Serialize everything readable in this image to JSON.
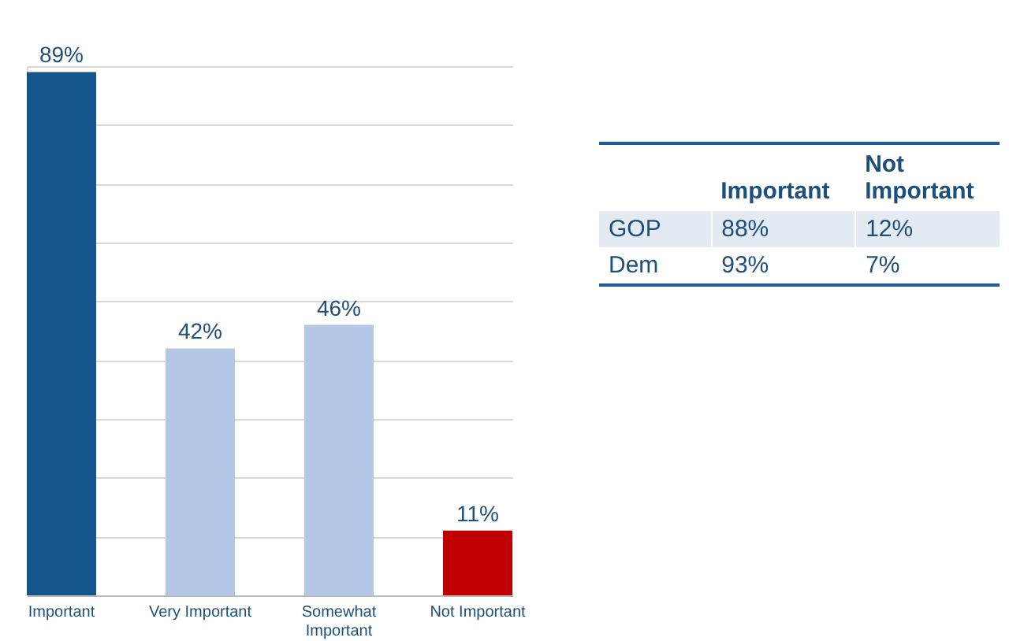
{
  "chart_data": [
    {
      "type": "bar",
      "categories": [
        "Important",
        "Very Important",
        "Somewhat Important",
        "Not Important"
      ],
      "values": [
        89,
        42,
        46,
        11
      ],
      "colors": [
        "#14568b",
        "#b4c7e7",
        "#b4c7e7",
        "#c00000"
      ],
      "value_labels": [
        "89%",
        "42%",
        "46%",
        "11%"
      ],
      "grid": "y",
      "tick_labels": "x"
    },
    {
      "type": "other",
      "categories": [
        "Important",
        "Not Important"
      ],
      "series": [
        {
          "name": "GOP",
          "values": [
            88,
            12
          ],
          "value_labels": [
            "88%",
            "12%"
          ]
        },
        {
          "name": "Dem",
          "values": [
            93,
            7
          ],
          "value_labels": [
            "93%",
            "7%"
          ]
        }
      ]
    }
  ]
}
